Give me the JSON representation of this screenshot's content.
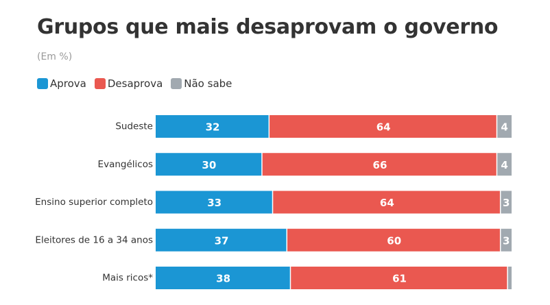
{
  "title": "Grupos que mais desaprovam o governo",
  "subtitle": "(Em %)",
  "legend": [
    {
      "label": "Aprova",
      "color": "#1b96d4"
    },
    {
      "label": "Desaprova",
      "color": "#ea5850"
    },
    {
      "label": "Não sabe",
      "color": "#a1a9b0"
    }
  ],
  "chart_data": {
    "type": "bar",
    "orientation": "horizontal",
    "stacked": true,
    "title": "Grupos que mais desaprovam o governo",
    "subtitle": "(Em %)",
    "categories": [
      "Sudeste",
      "Evangélicos",
      "Ensino superior completo",
      "Eleitores de 16 a 34 anos",
      "Mais ricos*"
    ],
    "series": [
      {
        "name": "Aprova",
        "color": "#1b96d4",
        "values": [
          32,
          30,
          33,
          37,
          38
        ]
      },
      {
        "name": "Desaprova",
        "color": "#ea5850",
        "values": [
          64,
          66,
          64,
          60,
          61
        ]
      },
      {
        "name": "Não sabe",
        "color": "#a1a9b0",
        "values": [
          4,
          4,
          3,
          3,
          1
        ]
      }
    ],
    "data_labels": [
      [
        "32",
        "64",
        "4"
      ],
      [
        "30",
        "66",
        "4"
      ],
      [
        "33",
        "64",
        "3"
      ],
      [
        "37",
        "60",
        "3"
      ],
      [
        "38",
        "61",
        ""
      ]
    ],
    "xlim": [
      0,
      100
    ],
    "legend_position": "top-left",
    "grid": false
  }
}
